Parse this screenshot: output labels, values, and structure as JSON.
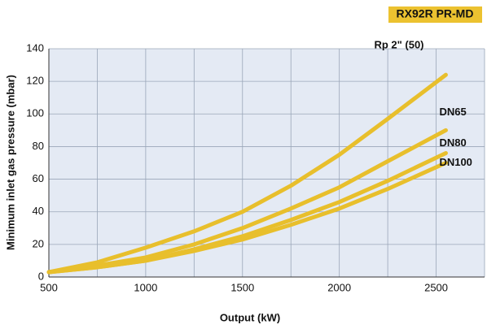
{
  "chart_data": {
    "type": "line",
    "badge": "RX92R PR-MD",
    "x_label": "Output (kW)",
    "y_label": "Minimum inlet gas pressure (mbar)",
    "x": [
      500,
      750,
      1000,
      1250,
      1500,
      1750,
      2000,
      2250,
      2550
    ],
    "series": [
      {
        "name": "Rp 2\" (50)",
        "color": "#e8bf2c",
        "values": [
          3,
          9,
          18,
          28,
          40,
          56,
          75,
          97,
          124
        ]
      },
      {
        "name": "DN65",
        "color": "#e8bf2c",
        "values": [
          3,
          7,
          12,
          20,
          30,
          42,
          55,
          71,
          90
        ]
      },
      {
        "name": "DN80",
        "color": "#e8bf2c",
        "values": [
          3,
          6,
          10,
          17,
          25,
          35,
          46,
          59,
          76
        ]
      },
      {
        "name": "DN100",
        "color": "#e8bf2c",
        "values": [
          3,
          6,
          10,
          16,
          23,
          32,
          42,
          54,
          70
        ]
      }
    ],
    "xlim": [
      500,
      2750
    ],
    "ylim": [
      0,
      140
    ],
    "xticks": [
      500,
      1000,
      1500,
      2000,
      2500
    ],
    "x_minor_grid": [
      750,
      1250,
      1750,
      2250,
      2750
    ],
    "yticks": [
      0,
      20,
      40,
      60,
      80,
      100,
      120,
      140
    ],
    "grid": true
  }
}
